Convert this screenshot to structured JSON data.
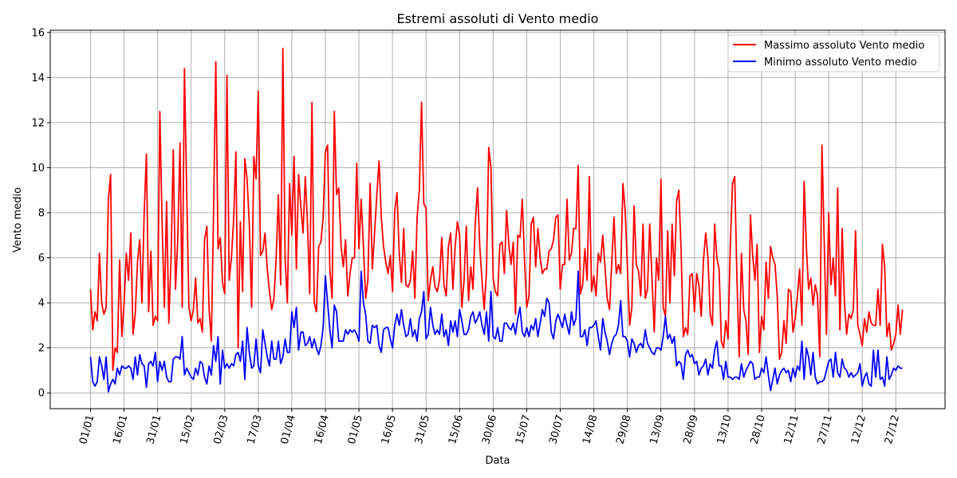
{
  "chart_data": {
    "type": "line",
    "title": "Estremi assoluti di Vento medio",
    "xlabel": "Data",
    "ylabel": "Vento medio",
    "ylim": [
      -0.7,
      16.1
    ],
    "xlim_days": [
      -18,
      382
    ],
    "grid": true,
    "legend_position": "top-right",
    "yticks": [
      0,
      2,
      4,
      6,
      8,
      10,
      12,
      14,
      16
    ],
    "xticks": [
      {
        "day": 0,
        "label": "01/01"
      },
      {
        "day": 15,
        "label": "16/01"
      },
      {
        "day": 30,
        "label": "31/01"
      },
      {
        "day": 45,
        "label": "15/02"
      },
      {
        "day": 60,
        "label": "02/03"
      },
      {
        "day": 75,
        "label": "17/03"
      },
      {
        "day": 90,
        "label": "01/04"
      },
      {
        "day": 105,
        "label": "16/04"
      },
      {
        "day": 120,
        "label": "01/05"
      },
      {
        "day": 135,
        "label": "16/05"
      },
      {
        "day": 150,
        "label": "31/05"
      },
      {
        "day": 165,
        "label": "15/06"
      },
      {
        "day": 180,
        "label": "30/06"
      },
      {
        "day": 195,
        "label": "15/07"
      },
      {
        "day": 210,
        "label": "30/07"
      },
      {
        "day": 225,
        "label": "14/08"
      },
      {
        "day": 240,
        "label": "29/08"
      },
      {
        "day": 255,
        "label": "13/09"
      },
      {
        "day": 270,
        "label": "28/09"
      },
      {
        "day": 285,
        "label": "13/10"
      },
      {
        "day": 300,
        "label": "28/10"
      },
      {
        "day": 315,
        "label": "12/11"
      },
      {
        "day": 330,
        "label": "27/11"
      },
      {
        "day": 345,
        "label": "12/12"
      },
      {
        "day": 360,
        "label": "27/12"
      }
    ],
    "series": [
      {
        "name": "Massimo assoluto Vento medio",
        "color": "#ff0000",
        "values": [
          4.6,
          2.8,
          3.6,
          3.2,
          6.2,
          4.0,
          3.5,
          3.8,
          8.6,
          9.7,
          1.0,
          2.0,
          1.8,
          5.9,
          2.5,
          4.0,
          6.2,
          5.0,
          7.1,
          2.6,
          3.5,
          5.8,
          6.8,
          4.0,
          8.0,
          10.6,
          3.6,
          6.3,
          3.0,
          3.4,
          3.2,
          12.5,
          7.5,
          3.8,
          8.5,
          3.1,
          6.0,
          10.8,
          4.6,
          6.8,
          11.1,
          3.8,
          14.4,
          9.0,
          3.8,
          3.2,
          3.7,
          5.1,
          3.1,
          3.3,
          2.7,
          6.8,
          7.4,
          3.7,
          2.3,
          8.0,
          14.7,
          6.4,
          6.9,
          4.9,
          4.4,
          14.1,
          5.0,
          6.0,
          7.7,
          10.7,
          2.0,
          7.6,
          4.5,
          10.4,
          9.5,
          7.5,
          3.8,
          10.5,
          9.5,
          13.4,
          6.1,
          6.3,
          7.1,
          5.5,
          4.5,
          3.7,
          4.2,
          6.0,
          8.8,
          4.8,
          15.3,
          6.0,
          4.0,
          9.3,
          7.0,
          10.5,
          5.5,
          9.7,
          8.3,
          7.1,
          9.6,
          7.5,
          4.4,
          12.9,
          4.0,
          3.6,
          6.5,
          6.7,
          7.8,
          10.7,
          11.0,
          5.5,
          4.2,
          12.5,
          8.8,
          9.1,
          6.5,
          5.6,
          6.8,
          4.3,
          5.3,
          6.0,
          6.0,
          10.2,
          6.4,
          8.6,
          6.5,
          4.2,
          5.0,
          9.3,
          5.5,
          7.1,
          8.8,
          10.3,
          7.8,
          6.5,
          5.8,
          5.3,
          6.1,
          4.5,
          8.1,
          8.9,
          6.2,
          4.9,
          7.3,
          4.8,
          4.7,
          5.0,
          6.3,
          4.2,
          7.8,
          9.0,
          12.9,
          8.4,
          8.2,
          4.1,
          5.0,
          5.6,
          4.7,
          4.5,
          5.0,
          6.9,
          4.8,
          4.3,
          6.5,
          7.1,
          4.6,
          6.5,
          7.6,
          7.0,
          3.8,
          5.0,
          7.4,
          4.1,
          5.6,
          4.6,
          7.5,
          9.1,
          6.5,
          5.0,
          3.7,
          5.4,
          10.9,
          10.0,
          5.1,
          4.5,
          4.3,
          6.6,
          6.7,
          5.3,
          8.1,
          6.6,
          5.7,
          6.7,
          3.5,
          7.0,
          6.9,
          8.6,
          5.9,
          3.8,
          4.3,
          7.5,
          7.8,
          5.6,
          7.3,
          6.0,
          5.3,
          5.5,
          5.5,
          6.3,
          6.4,
          6.8,
          7.8,
          7.9,
          4.6,
          5.7,
          5.7,
          8.6,
          5.9,
          6.2,
          7.3,
          7.3,
          10.1,
          4.4,
          4.8,
          6.4,
          5.0,
          9.6,
          4.5,
          5.2,
          4.3,
          6.2,
          5.8,
          7.0,
          5.6,
          4.2,
          3.7,
          5.8,
          7.8,
          5.3,
          5.7,
          5.3,
          9.3,
          8.1,
          5.6,
          3.0,
          3.8,
          8.3,
          5.7,
          5.4,
          4.3,
          7.5,
          4.2,
          4.6,
          7.5,
          5.1,
          2.7,
          6.0,
          5.0,
          9.5,
          3.8,
          3.4,
          7.2,
          4.0,
          7.5,
          5.2,
          8.5,
          9.0,
          6.4,
          2.5,
          2.9,
          2.6,
          5.2,
          5.3,
          3.6,
          5.3,
          4.8,
          3.4,
          5.9,
          7.1,
          6.0,
          3.5,
          3.0,
          7.5,
          6.0,
          5.5,
          2.3,
          2.0,
          3.2,
          2.4,
          6.5,
          9.3,
          9.6,
          5.0,
          1.6,
          6.2,
          3.7,
          3.2,
          1.7,
          7.9,
          6.1,
          5.0,
          6.6,
          1.8,
          3.4,
          2.8,
          5.8,
          4.2,
          6.5,
          6.0,
          5.7,
          4.3,
          1.5,
          1.8,
          3.2,
          2.2,
          4.6,
          4.5,
          2.7,
          3.3,
          4.3,
          5.5,
          3.0,
          9.4,
          6.5,
          4.6,
          5.1,
          3.9,
          4.8,
          4.3,
          1.6,
          11.0,
          6.7,
          2.6,
          8.0,
          4.8,
          6.0,
          4.3,
          9.1,
          2.8,
          7.3,
          4.1,
          2.6,
          3.5,
          3.3,
          3.7,
          7.2,
          3.0,
          2.6,
          2.1,
          3.3,
          2.7,
          3.6,
          3.1,
          3.0,
          3.0,
          4.6,
          3.0,
          6.6,
          5.6,
          2.5,
          3.1,
          1.9,
          2.2,
          2.6,
          3.9,
          2.6,
          3.7
        ]
      },
      {
        "name": "Minimo assoluto Vento medio",
        "color": "#0000ff",
        "values": [
          1.6,
          0.5,
          0.3,
          0.5,
          1.6,
          1.2,
          0.6,
          1.6,
          0.05,
          0.4,
          0.6,
          0.4,
          1.1,
          0.8,
          1.2,
          1.1,
          1.1,
          1.2,
          1.1,
          0.6,
          1.6,
          0.8,
          1.7,
          1.3,
          1.2,
          0.25,
          1.3,
          1.4,
          1.2,
          1.8,
          0.5,
          1.4,
          1.0,
          1.4,
          0.7,
          0.5,
          0.5,
          1.5,
          1.6,
          1.6,
          1.5,
          2.5,
          0.8,
          1.1,
          0.9,
          0.7,
          0.6,
          1.1,
          0.8,
          1.4,
          1.3,
          0.7,
          0.4,
          1.2,
          0.8,
          2.1,
          1.4,
          2.5,
          0.4,
          1.9,
          1.1,
          1.3,
          1.1,
          1.3,
          1.2,
          1.7,
          1.8,
          1.4,
          2.3,
          0.6,
          2.9,
          1.8,
          1.1,
          1.2,
          2.4,
          1.2,
          0.9,
          2.8,
          2.2,
          1.6,
          1.2,
          2.3,
          1.5,
          1.5,
          2.3,
          1.3,
          1.6,
          2.4,
          1.8,
          1.8,
          3.6,
          2.9,
          3.8,
          1.9,
          2.7,
          2.7,
          2.1,
          2.2,
          2.5,
          2.0,
          2.4,
          2.0,
          1.7,
          2.1,
          2.9,
          5.2,
          4.0,
          2.8,
          2.0,
          3.9,
          3.6,
          2.3,
          2.3,
          2.3,
          2.8,
          2.6,
          2.8,
          2.7,
          2.8,
          2.6,
          2.3,
          5.4,
          4.0,
          3.5,
          2.3,
          2.2,
          3.0,
          2.9,
          3.0,
          2.1,
          1.8,
          2.8,
          2.9,
          2.9,
          2.4,
          2.0,
          3.0,
          3.5,
          3.0,
          3.7,
          3.0,
          2.5,
          2.6,
          3.3,
          2.5,
          2.8,
          2.3,
          3.3,
          3.6,
          4.5,
          2.4,
          2.6,
          3.8,
          3.0,
          2.6,
          2.8,
          2.6,
          3.5,
          2.5,
          2.8,
          2.1,
          3.2,
          2.7,
          3.2,
          2.5,
          3.7,
          3.2,
          2.6,
          2.6,
          2.8,
          3.4,
          3.6,
          3.1,
          3.3,
          3.6,
          3.0,
          2.6,
          3.6,
          2.3,
          4.5,
          2.5,
          2.4,
          2.9,
          2.3,
          2.3,
          3.1,
          3.1,
          2.9,
          2.8,
          3.1,
          2.6,
          3.3,
          3.8,
          2.7,
          2.5,
          2.9,
          2.5,
          3.0,
          2.8,
          3.3,
          2.5,
          3.1,
          3.7,
          3.4,
          4.2,
          4.0,
          2.7,
          2.4,
          3.2,
          3.5,
          3.2,
          2.9,
          3.5,
          3.0,
          2.6,
          3.6,
          3.0,
          3.3,
          5.4,
          2.5,
          2.5,
          2.8,
          2.1,
          2.9,
          2.9,
          3.0,
          3.2,
          2.5,
          1.9,
          3.3,
          2.7,
          2.3,
          1.7,
          2.2,
          2.5,
          2.6,
          3.0,
          4.1,
          2.5,
          2.5,
          2.3,
          1.6,
          2.4,
          2.2,
          1.8,
          2.1,
          2.2,
          2.0,
          2.8,
          2.2,
          2.0,
          1.8,
          1.7,
          2.0,
          2.0,
          1.9,
          2.5,
          3.4,
          2.4,
          2.6,
          2.2,
          2.5,
          1.2,
          1.4,
          1.3,
          0.6,
          1.7,
          1.9,
          1.6,
          1.7,
          1.3,
          1.4,
          0.8,
          1.1,
          1.2,
          1.5,
          0.8,
          1.3,
          1.1,
          1.9,
          2.3,
          1.2,
          1.2,
          0.6,
          1.4,
          0.7,
          0.7,
          0.6,
          0.7,
          0.7,
          0.6,
          1.3,
          0.7,
          1.0,
          1.2,
          1.4,
          1.3,
          0.6,
          0.7,
          0.7,
          1.1,
          0.9,
          1.6,
          0.8,
          0.1,
          0.6,
          1.1,
          0.4,
          0.8,
          1.0,
          1.1,
          0.9,
          1.0,
          0.5,
          1.1,
          0.7,
          1.2,
          1.0,
          2.3,
          0.6,
          2.0,
          1.6,
          0.8,
          1.8,
          0.7,
          0.4,
          0.5,
          0.5,
          0.6,
          1.0,
          1.4,
          1.5,
          0.7,
          1.8,
          0.9,
          0.7,
          1.5,
          1.1,
          1.0,
          0.7,
          0.9,
          0.7,
          0.8,
          0.9,
          1.3,
          0.3,
          0.7,
          0.9,
          0.4,
          0.3,
          1.9,
          0.7,
          1.9,
          0.6,
          0.7,
          0.3,
          1.6,
          0.6,
          0.8,
          1.1,
          1.0,
          1.2,
          1.1,
          1.1
        ]
      }
    ]
  }
}
